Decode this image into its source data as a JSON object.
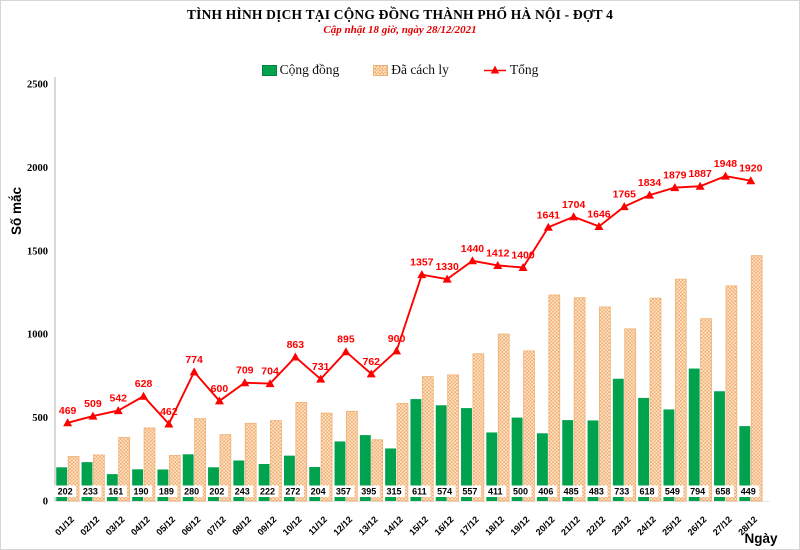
{
  "legend": {
    "items": [
      {
        "label": "Cộng đồng",
        "swatch": "green-square",
        "color": "#00A24E"
      },
      {
        "label": "Đã cách ly",
        "swatch": "dotted-square",
        "color": "#F2AE73"
      },
      {
        "label": "Tổng",
        "swatch": "line-triangle",
        "color": "#FF0000"
      }
    ]
  },
  "colors": {
    "community_green": "#00A24E",
    "quarantine_base": "#FDE7CB",
    "quarantine_dot": "#F2AE73",
    "quarantine_border": "#EFB173",
    "total_red": "#FF0000",
    "axis_gray": "#BFBFBF",
    "subtitle_red": "#E00000"
  },
  "chart_data": {
    "type": "bar",
    "title": "TÌNH HÌNH DỊCH TẠI CỘNG ĐỒNG THÀNH PHỐ HÀ NỘI - ĐỢT 4",
    "subtitle": "Cập nhật 18 giờ, ngày 28/12/2021",
    "xlabel": "Ngày",
    "ylabel": "Số mắc",
    "ylim": [
      0,
      2500
    ],
    "yticks": [
      0,
      500,
      1000,
      1500,
      2000,
      2500
    ],
    "grid": false,
    "legend_position": "top-center",
    "categories": [
      "01/12",
      "02/12",
      "03/12",
      "04/12",
      "05/12",
      "06/12",
      "07/12",
      "08/12",
      "09/12",
      "10/12",
      "11/12",
      "12/12",
      "13/12",
      "14/12",
      "15/12",
      "16/12",
      "17/12",
      "18/12",
      "19/12",
      "20/12",
      "21/12",
      "22/12",
      "23/12",
      "24/12",
      "25/12",
      "26/12",
      "27/12",
      "28/12"
    ],
    "series": [
      {
        "name": "Cộng đồng",
        "type": "bar",
        "color": "#00A24E",
        "data_labels": "inside-base",
        "values": [
          202,
          233,
          161,
          190,
          189,
          280,
          202,
          243,
          222,
          272,
          204,
          357,
          395,
          315,
          611,
          574,
          557,
          411,
          500,
          406,
          485,
          483,
          733,
          618,
          549,
          794,
          658,
          449
        ]
      },
      {
        "name": "Đã cách ly",
        "type": "bar",
        "pattern": "dotted",
        "color_base": "#FDE7CB",
        "color_dot": "#F2AE73",
        "color_border": "#EFB173",
        "data_labels": "none",
        "values": [
          267,
          276,
          381,
          438,
          273,
          494,
          398,
          466,
          482,
          591,
          527,
          538,
          367,
          585,
          746,
          756,
          883,
          1001,
          900,
          1235,
          1219,
          1163,
          1032,
          1216,
          1330,
          1093,
          1290,
          1471
        ]
      },
      {
        "name": "Tổng",
        "type": "line",
        "color": "#FF0000",
        "marker": "triangle",
        "data_labels": "above",
        "values": [
          469,
          509,
          542,
          628,
          462,
          774,
          600,
          709,
          704,
          863,
          731,
          895,
          762,
          900,
          1357,
          1330,
          1440,
          1412,
          1400,
          1641,
          1704,
          1646,
          1765,
          1834,
          1879,
          1887,
          1948,
          1920
        ]
      }
    ]
  }
}
